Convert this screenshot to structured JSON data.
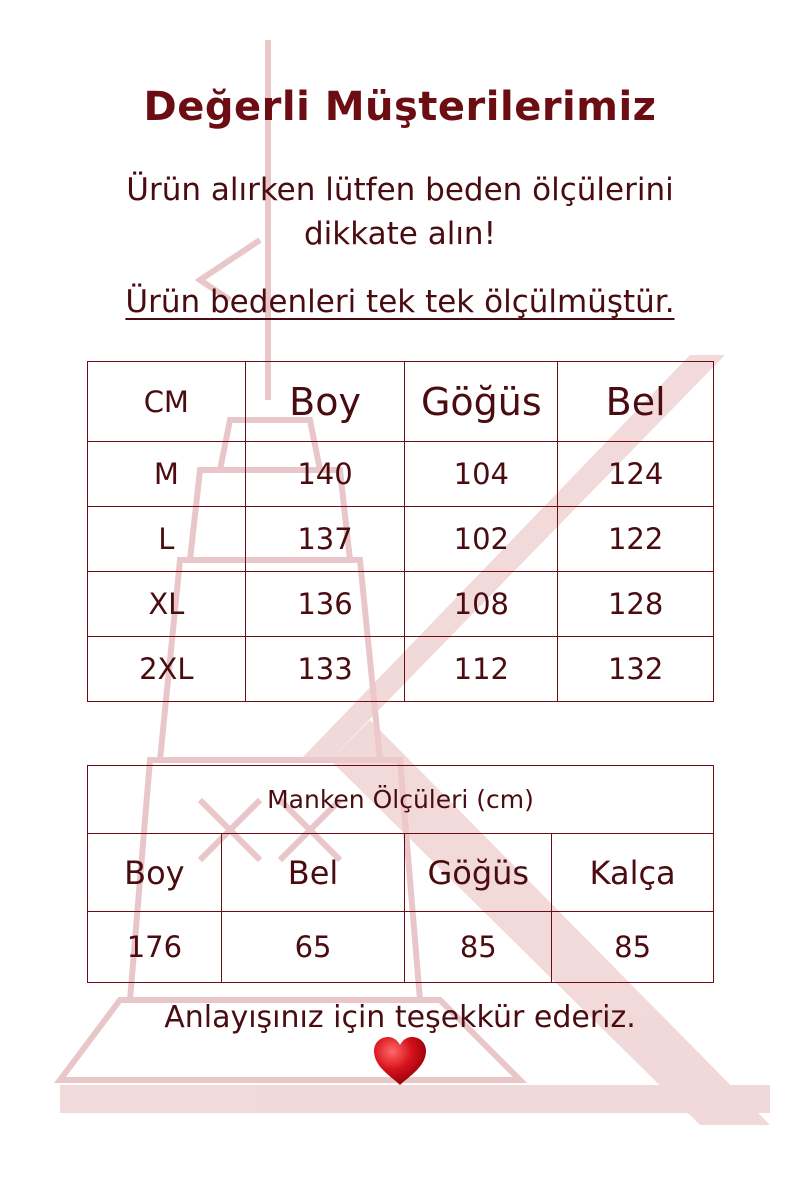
{
  "header": {
    "title": "Değerli Müşterilerimiz",
    "subtitle_line1": "Ürün alırken lütfen beden ölçülerini",
    "subtitle_line2": "dikkate alın!",
    "note": "Ürün bedenleri tek tek ölçülmüştür."
  },
  "size_table": {
    "headers": [
      "CM",
      "Boy",
      "Göğüs",
      "Bel"
    ],
    "rows": [
      [
        "M",
        "140",
        "104",
        "124"
      ],
      [
        "L",
        "137",
        "102",
        "122"
      ],
      [
        "XL",
        "136",
        "108",
        "128"
      ],
      [
        "2XL",
        "133",
        "112",
        "132"
      ]
    ]
  },
  "model_table": {
    "caption": "Manken Ölçüleri (cm)",
    "headers": [
      "Boy",
      "Bel",
      "Göğüs",
      "Kalça"
    ],
    "values": [
      "176",
      "65",
      "85",
      "85"
    ]
  },
  "footer": {
    "thanks": "Anlayışınız için teşekkür ederiz.",
    "icon": "heart-icon"
  },
  "colors": {
    "text": "#4a0c10",
    "title": "#6b0d12",
    "watermark": "#d9a5a8",
    "heart": "#d6121c"
  }
}
